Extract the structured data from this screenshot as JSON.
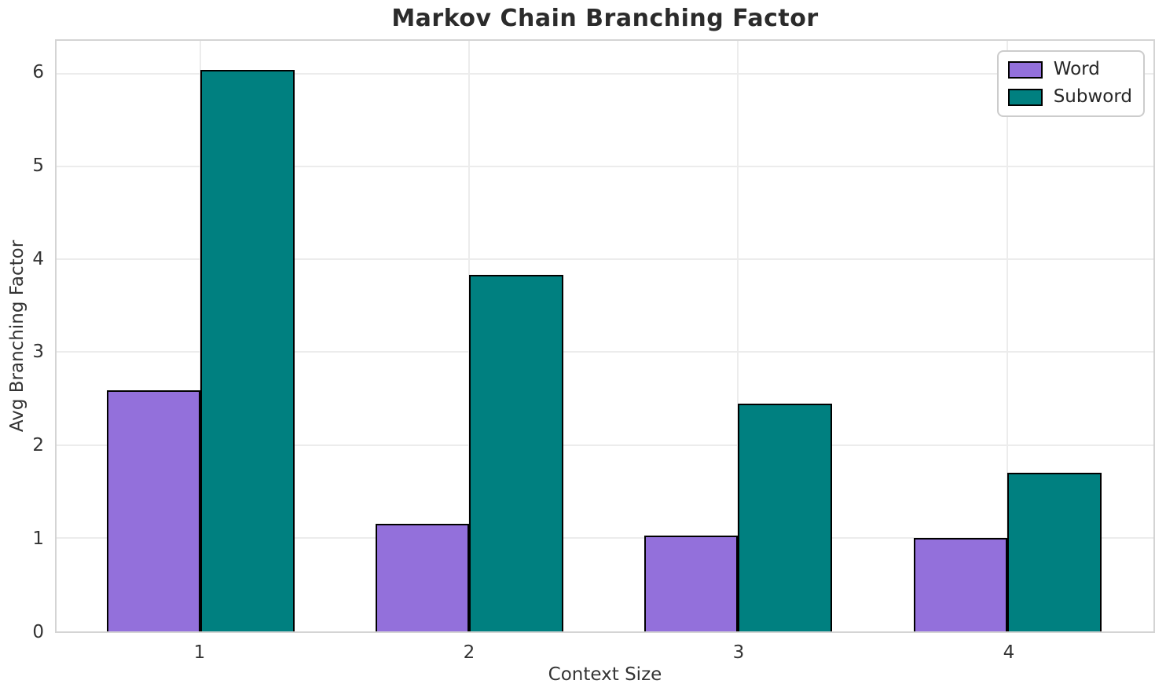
{
  "chart_data": {
    "type": "bar",
    "title": "Markov Chain Branching Factor",
    "xlabel": "Context Size",
    "ylabel": "Avg Branching Factor",
    "categories": [
      "1",
      "2",
      "3",
      "4"
    ],
    "series": [
      {
        "name": "Word",
        "color": "#9370DB",
        "values": [
          2.6,
          1.16,
          1.03,
          1.01
        ]
      },
      {
        "name": "Subword",
        "color": "#008080",
        "values": [
          6.05,
          3.84,
          2.45,
          1.71
        ]
      }
    ],
    "ylim": [
      0,
      6.36
    ],
    "yticks": [
      0,
      1,
      2,
      3,
      4,
      5,
      6
    ],
    "grid": true,
    "legend_position": "upper right",
    "bar_edge_color": "#000000",
    "layout": {
      "category_centers_pct": [
        13.14,
        37.64,
        62.14,
        86.71
      ],
      "bar_width_pct": 8.57
    }
  }
}
